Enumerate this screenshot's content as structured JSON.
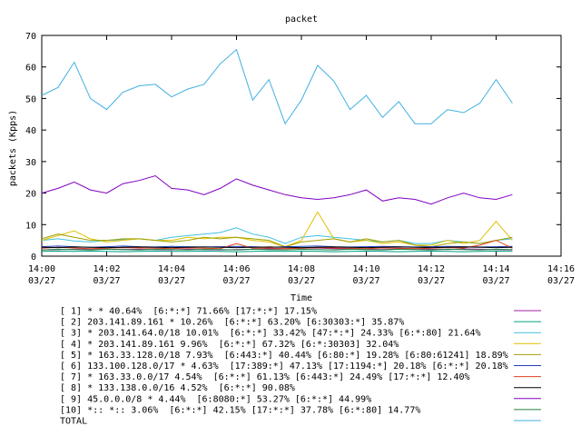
{
  "chart_data": {
    "type": "line",
    "title": "packet",
    "xlabel": "Time",
    "ylabel": "packets (Kpps)",
    "ylim": [
      0,
      70
    ],
    "y_ticks": [
      0,
      10,
      20,
      30,
      40,
      50,
      60,
      70
    ],
    "x_ticks": [
      {
        "time": "14:00",
        "date": "03/27"
      },
      {
        "time": "14:02",
        "date": "03/27"
      },
      {
        "time": "14:04",
        "date": "03/27"
      },
      {
        "time": "14:06",
        "date": "03/27"
      },
      {
        "time": "14:08",
        "date": "03/27"
      },
      {
        "time": "14:10",
        "date": "03/27"
      },
      {
        "time": "14:12",
        "date": "03/27"
      },
      {
        "time": "14:14",
        "date": "03/27"
      },
      {
        "time": "14:16",
        "date": "03/27"
      }
    ],
    "xlim": [
      "14:00",
      "14:16"
    ],
    "x": [
      "14:00",
      "14:00:30",
      "14:01",
      "14:01:30",
      "14:02",
      "14:02:30",
      "14:03",
      "14:03:30",
      "14:04",
      "14:04:30",
      "14:05",
      "14:05:30",
      "14:06",
      "14:06:30",
      "14:07",
      "14:07:30",
      "14:08",
      "14:08:30",
      "14:09",
      "14:09:30",
      "14:10",
      "14:10:30",
      "14:11",
      "14:11:30",
      "14:12",
      "14:12:30",
      "14:13",
      "14:13:30",
      "14:14",
      "14:14:30"
    ],
    "legend_position": "bottom",
    "series": [
      {
        "name": "[ 1] * * 40.64%  [6:*:*] 71.66% [17:*:*] 17.15%",
        "color": "#a020a0",
        "values": [
          2.0,
          2.1,
          2.2,
          2.3,
          2.2,
          2.1,
          2.2,
          2.1,
          2.0,
          2.2,
          2.1,
          2.0,
          2.1,
          2.2,
          2.3,
          2.4,
          2.5,
          2.6,
          2.4,
          2.3,
          2.2,
          2.1,
          2.3,
          2.4,
          2.2,
          2.1,
          2.3,
          2.2,
          2.1,
          2.0
        ]
      },
      {
        "name": "[ 2] 203.141.89.161 * 10.26%  [6:*:*] 63.20% [6:30303:*] 35.87%",
        "color": "#00a080",
        "values": [
          1.5,
          1.6,
          1.5,
          1.6,
          1.5,
          1.4,
          1.5,
          1.6,
          1.5,
          1.5,
          1.6,
          1.5,
          1.4,
          1.5,
          1.6,
          1.5,
          1.6,
          1.5,
          1.4,
          1.5,
          1.6,
          1.5,
          1.4,
          1.5,
          1.6,
          1.5,
          1.4,
          1.5,
          1.6,
          1.5
        ]
      },
      {
        "name": "[ 3] * 203.141.64.0/18 10.01%  [6:*:*] 33.42% [47:*:*] 24.33% [6:*:80] 21.64%",
        "color": "#40c0e0",
        "values": [
          5.0,
          5.5,
          4.8,
          4.5,
          5.0,
          5.2,
          5.5,
          5.0,
          6.0,
          6.5,
          7.0,
          7.5,
          9.0,
          7.0,
          6.0,
          4.0,
          6.0,
          6.5,
          6.0,
          5.5,
          5.0,
          4.5,
          5.0,
          4.0,
          4.0,
          5.0,
          4.5,
          4.0,
          5.0,
          5.5
        ]
      },
      {
        "name": "[ 4] * 203.141.89.161 9.96%  [6:*:*] 67.32% [6:*:30303] 32.04%",
        "color": "#e0c000",
        "values": [
          5.0,
          6.5,
          8.0,
          5.5,
          4.5,
          5.0,
          5.5,
          5.0,
          5.0,
          6.0,
          5.5,
          6.0,
          6.0,
          5.0,
          4.5,
          3.0,
          5.0,
          14.0,
          5.5,
          4.5,
          5.0,
          4.0,
          4.5,
          3.5,
          3.5,
          5.0,
          4.0,
          5.0,
          11.0,
          5.0
        ]
      },
      {
        "name": "[ 5] * 163.33.128.0/18 7.93%  [6:443:*] 40.44% [6:80:*] 19.28% [6:80:61241] 18.89%",
        "color": "#a0a000",
        "values": [
          5.5,
          7.0,
          6.0,
          5.0,
          5.0,
          5.5,
          5.5,
          5.0,
          4.5,
          5.0,
          6.0,
          5.5,
          6.0,
          5.5,
          5.0,
          3.0,
          4.5,
          5.0,
          5.5,
          4.5,
          5.5,
          4.5,
          5.0,
          3.5,
          3.0,
          4.0,
          4.5,
          4.0,
          5.0,
          6.0
        ]
      },
      {
        "name": "[ 6] 133.100.128.0/17 * 4.63%  [17:389:*] 47.13% [17:1194:*] 20.18% [6:*:*] 20.18%",
        "color": "#2040c0",
        "values": [
          3.0,
          3.2,
          3.0,
          2.8,
          3.0,
          3.2,
          3.0,
          2.9,
          3.1,
          3.0,
          2.9,
          3.0,
          3.1,
          3.0,
          2.8,
          3.0,
          3.1,
          3.2,
          3.0,
          2.9,
          3.0,
          3.1,
          3.0,
          2.9,
          3.0,
          3.1,
          3.0,
          2.9,
          3.0,
          3.1
        ]
      },
      {
        "name": "[ 7] * 163.33.0.0/17 4.54%  [6:*:*] 61.13% [6:443:*] 24.49% [17:*:*] 12.40%",
        "color": "#e04020",
        "values": [
          2.5,
          2.8,
          2.6,
          2.4,
          2.5,
          2.7,
          2.6,
          2.5,
          2.4,
          2.6,
          2.5,
          2.4,
          4.0,
          2.5,
          2.6,
          2.4,
          2.5,
          2.7,
          2.6,
          2.5,
          2.4,
          2.6,
          2.5,
          2.4,
          2.5,
          2.7,
          2.6,
          3.5,
          5.0,
          2.5
        ]
      },
      {
        "name": "[ 8] * 133.138.0.0/16 4.52%  [6:*:*] 90.08%",
        "color": "#000000",
        "values": [
          2.8,
          2.7,
          2.9,
          2.8,
          2.7,
          2.8,
          2.9,
          2.8,
          2.7,
          2.8,
          2.9,
          2.8,
          2.7,
          2.8,
          2.9,
          2.8,
          2.7,
          2.8,
          2.9,
          2.8,
          2.7,
          2.8,
          2.9,
          2.8,
          2.7,
          2.8,
          2.9,
          2.8,
          2.7,
          2.8
        ]
      },
      {
        "name": "[ 9] 45.0.0.0/8 * 4.44%  [6:8080:*] 53.27% [6:*:*] 44.99%",
        "color": "#8000c0",
        "values": [
          20.0,
          21.5,
          23.5,
          21.0,
          20.0,
          23.0,
          24.0,
          25.5,
          21.5,
          21.0,
          19.5,
          21.5,
          24.5,
          22.5,
          21.0,
          19.5,
          18.5,
          18.0,
          18.5,
          19.5,
          21.0,
          17.5,
          18.5,
          18.0,
          16.5,
          18.5,
          20.0,
          18.5,
          18.0,
          19.5
        ]
      },
      {
        "name": "[10] *:: *:: 3.06%  [6:*:*] 42.15% [17:*:*] 37.78% [6:*:80] 14.77%",
        "color": "#208040",
        "values": [
          2.0,
          2.2,
          2.1,
          2.0,
          2.2,
          2.1,
          2.0,
          2.2,
          2.1,
          2.0,
          2.2,
          2.1,
          2.0,
          2.2,
          2.1,
          2.0,
          2.2,
          2.1,
          2.0,
          2.2,
          2.1,
          2.0,
          2.2,
          2.1,
          2.0,
          2.2,
          2.1,
          2.0,
          2.2,
          2.1
        ]
      },
      {
        "name": "TOTAL",
        "color": "#40b0e0",
        "values": [
          51.0,
          53.5,
          61.5,
          50.0,
          46.5,
          52.0,
          54.0,
          54.5,
          50.5,
          53.0,
          54.5,
          61.0,
          65.5,
          49.5,
          56.0,
          42.0,
          49.5,
          60.5,
          55.5,
          46.5,
          51.0,
          44.0,
          49.0,
          42.0,
          42.0,
          46.5,
          45.5,
          48.5,
          56.0,
          48.5
        ]
      }
    ]
  }
}
